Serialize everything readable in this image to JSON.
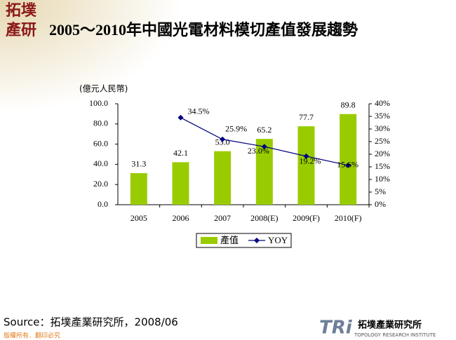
{
  "slide": {
    "logo_top": "拓墣",
    "logo_bottom": "產研",
    "source": "Source：拓墣產業研究所，2008/06",
    "footer": "版權所有．翻印必究",
    "brand_mark": "TRi",
    "brand_name": "拓墣產業研究所",
    "brand_sub": "TOPOLOGY RESEARCH INSTITUTE"
  },
  "chart_data": {
    "type": "bar",
    "title": "2005～2010年中國光電材料模切產值發展趨勢",
    "y_label": "(億元人民幣)",
    "categories": [
      "2005",
      "2006",
      "2007",
      "2008(E)",
      "2009(F)",
      "2010(F)"
    ],
    "series": [
      {
        "name": "產值",
        "type": "bar",
        "color": "#99cc00",
        "values": [
          31.3,
          42.1,
          53.0,
          65.2,
          77.7,
          89.8
        ],
        "value_labels": [
          "31.3",
          "42.1",
          "53.0",
          "65.2",
          "77.7",
          "89.8"
        ]
      },
      {
        "name": "YOY",
        "type": "line",
        "axis": "y2",
        "color": "#000080",
        "values": [
          null,
          34.5,
          25.9,
          23.0,
          19.2,
          15.6
        ],
        "value_labels": [
          null,
          "34.5%",
          "25.9%",
          "23.0%",
          "19.2%",
          "15.6%"
        ]
      }
    ],
    "ylim": [
      0,
      100
    ],
    "yticks": [
      {
        "value": 0,
        "label": "0.0"
      },
      {
        "value": 20,
        "label": "20.0"
      },
      {
        "value": 40,
        "label": "40.0"
      },
      {
        "value": 60,
        "label": "60.0"
      },
      {
        "value": 80,
        "label": "80.0"
      },
      {
        "value": 100,
        "label": "100.0"
      }
    ],
    "y2lim": [
      0,
      40
    ],
    "y2ticks": [
      {
        "value": 0,
        "label": "0%"
      },
      {
        "value": 5,
        "label": "5%"
      },
      {
        "value": 10,
        "label": "10%"
      },
      {
        "value": 15,
        "label": "15%"
      },
      {
        "value": 20,
        "label": "20%"
      },
      {
        "value": 25,
        "label": "25%"
      },
      {
        "value": 30,
        "label": "30%"
      },
      {
        "value": 35,
        "label": "35%"
      },
      {
        "value": 40,
        "label": "40%"
      }
    ],
    "grid": false,
    "legend": "bottom"
  }
}
